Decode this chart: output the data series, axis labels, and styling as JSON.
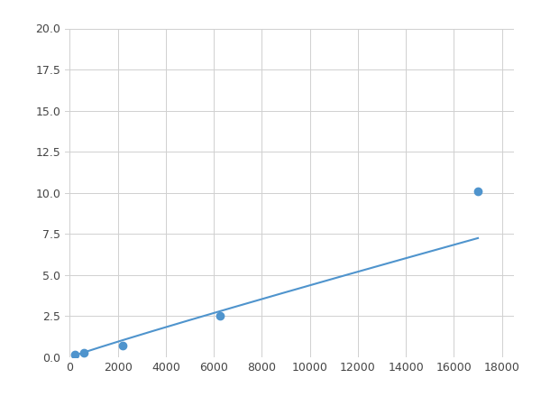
{
  "x_points": [
    200,
    600,
    2200,
    6250,
    17000
  ],
  "y_points": [
    0.15,
    0.25,
    0.7,
    2.55,
    10.1
  ],
  "line_color": "#4f94cd",
  "marker_color": "#4f94cd",
  "marker_size": 6,
  "xlim": [
    -200,
    18500
  ],
  "ylim": [
    0,
    20
  ],
  "xticks": [
    0,
    2000,
    4000,
    6000,
    8000,
    10000,
    12000,
    14000,
    16000,
    18000
  ],
  "yticks": [
    0.0,
    2.5,
    5.0,
    7.5,
    10.0,
    12.5,
    15.0,
    17.5,
    20.0
  ],
  "grid_color": "#d0d0d0",
  "background_color": "#ffffff",
  "line_width": 1.5,
  "figsize": [
    6.0,
    4.5
  ],
  "dpi": 100
}
